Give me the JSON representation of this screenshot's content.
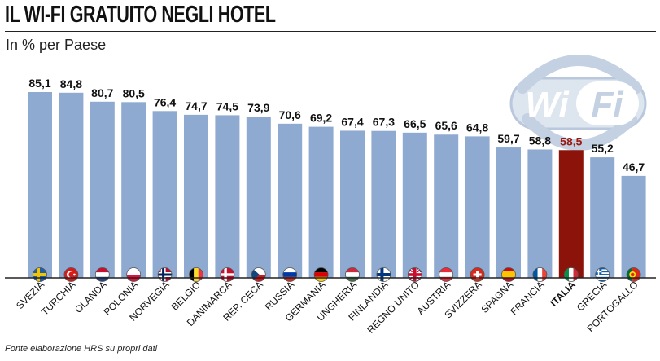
{
  "header": {
    "title": "IL WI-FI GRATUITO NEGLI HOTEL",
    "subtitle": "In % per Paese"
  },
  "footer": {
    "source": "Fonte elaborazione HRS su propri dati"
  },
  "logo": {
    "icon": "wifi-logo-icon",
    "text_left": "Wi",
    "text_right": "Fi"
  },
  "colors": {
    "bar": "#8eaad0",
    "highlight_bar": "#8b1309",
    "highlight_label": "#9b1a10",
    "baseline": "#222222"
  },
  "chart_data": {
    "type": "bar",
    "title": "IL WI-FI GRATUITO NEGLI HOTEL",
    "subtitle": "In % per Paese",
    "xlabel": "",
    "ylabel": "",
    "ylim": [
      0,
      90
    ],
    "grid": false,
    "legend": "none",
    "highlight": "ITALIA",
    "categories": [
      "SVEZIA",
      "TURCHIA",
      "OLANDA",
      "POLONIA",
      "NORVEGIA",
      "BELGIO",
      "DANIMARCA",
      "REP. CECA",
      "RUSSIA",
      "GERMANIA",
      "UNGHERIA",
      "FINLANDIA",
      "REGNO UNITO",
      "AUSTRIA",
      "SVIZZERA",
      "SPAGNA",
      "FRANCIA",
      "ITALIA",
      "GRECIA",
      "PORTOGALLO"
    ],
    "values": [
      85.1,
      84.8,
      80.7,
      80.5,
      76.4,
      74.7,
      74.5,
      73.9,
      70.6,
      69.2,
      67.4,
      67.3,
      66.5,
      65.6,
      64.8,
      59.7,
      58.8,
      58.5,
      55.2,
      46.7
    ],
    "value_labels": [
      "85,1",
      "84,8",
      "80,7",
      "80,5",
      "76,4",
      "74,7",
      "74,5",
      "73,9",
      "70,6",
      "69,2",
      "67,4",
      "67,3",
      "66,5",
      "65,6",
      "64,8",
      "59,7",
      "58,8",
      "58,5",
      "55,2",
      "46,7"
    ],
    "flag_icons": [
      "sweden-flag-icon",
      "turkey-flag-icon",
      "netherlands-flag-icon",
      "poland-flag-icon",
      "norway-flag-icon",
      "belgium-flag-icon",
      "denmark-flag-icon",
      "czech-flag-icon",
      "russia-flag-icon",
      "germany-flag-icon",
      "hungary-flag-icon",
      "finland-flag-icon",
      "uk-flag-icon",
      "austria-flag-icon",
      "switzerland-flag-icon",
      "spain-flag-icon",
      "france-flag-icon",
      "italy-flag-icon",
      "greece-flag-icon",
      "portugal-flag-icon"
    ]
  }
}
